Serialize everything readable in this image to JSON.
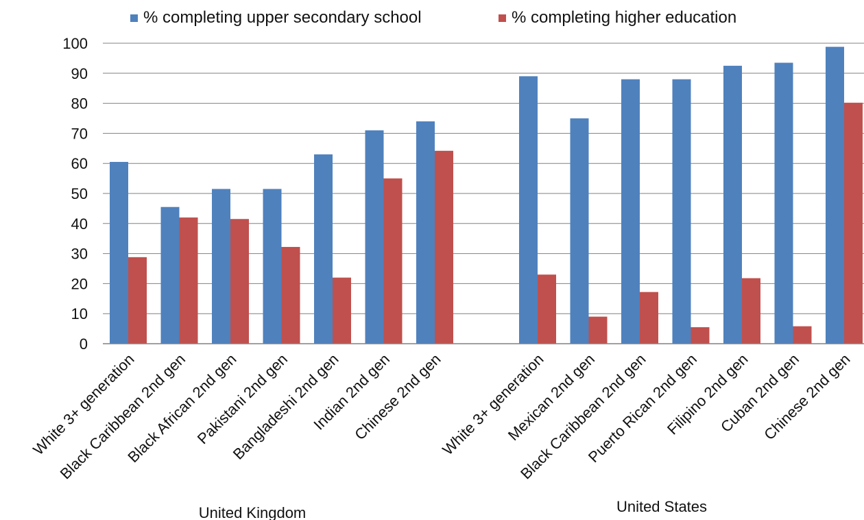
{
  "chart_data": {
    "type": "bar",
    "title": "",
    "xlabel": "",
    "ylabel": "",
    "ylim": [
      0,
      100
    ],
    "yticks": [
      0,
      10,
      20,
      30,
      40,
      50,
      60,
      70,
      80,
      90,
      100
    ],
    "grid": true,
    "legend_position": "top",
    "groups": [
      {
        "name": "United Kingdom",
        "categories": [
          "White 3+ generation",
          "Black Caribbean 2nd gen",
          "Black African 2nd gen",
          "Pakistani 2nd gen",
          "Bangladeshi 2nd gen",
          "Indian 2nd gen",
          "Chinese 2nd gen"
        ]
      },
      {
        "name": "United States",
        "categories": [
          "White 3+ generation",
          "Mexican 2nd gen",
          "Black Caribbean 2nd gen",
          "Puerto Rican 2nd gen",
          "Filipino 2nd gen",
          "Cuban 2nd gen",
          "Chinese 2nd gen"
        ]
      }
    ],
    "series": [
      {
        "name": "% completing upper secondary school",
        "color": "#4f81bd",
        "values": [
          [
            60.5,
            45.5,
            51.5,
            51.5,
            63,
            71,
            74
          ],
          [
            89,
            75,
            88,
            88,
            92.5,
            93.5,
            98.8
          ]
        ]
      },
      {
        "name": "% completing higher education",
        "color": "#c0504d",
        "values": [
          [
            28.8,
            42,
            41.5,
            32.2,
            22,
            55,
            64.2
          ],
          [
            23,
            9,
            17.2,
            5.5,
            21.8,
            5.8,
            80.2
          ]
        ]
      }
    ]
  }
}
